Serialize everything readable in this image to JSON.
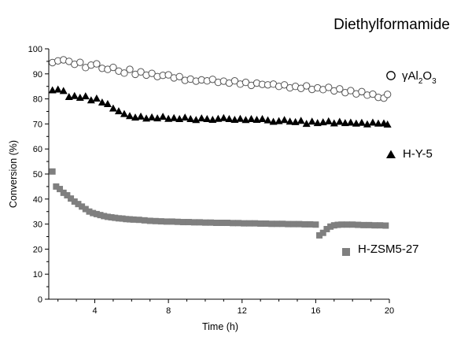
{
  "chart_data": {
    "type": "scatter",
    "title": "Diethylformamide",
    "xlabel": "Time (h)",
    "ylabel": "Conversion (%)",
    "xlim": [
      1.5,
      20
    ],
    "ylim": [
      0,
      100
    ],
    "xticks": [
      4,
      8,
      12,
      16,
      20
    ],
    "yticks": [
      0,
      10,
      20,
      30,
      40,
      50,
      60,
      70,
      80,
      90,
      100
    ],
    "grid": false,
    "legend": "right",
    "series": [
      {
        "name": "γAl2O3",
        "label_main": "γAl",
        "label_sub1": "2",
        "label_mid": "O",
        "label_sub2": "3",
        "marker": "open-circle",
        "color": "#555555",
        "x": [
          1.7,
          2.0,
          2.3,
          2.6,
          2.9,
          3.2,
          3.5,
          3.8,
          4.1,
          4.4,
          4.7,
          5.0,
          5.3,
          5.6,
          5.9,
          6.2,
          6.5,
          6.8,
          7.1,
          7.4,
          7.7,
          8.0,
          8.3,
          8.6,
          8.9,
          9.2,
          9.5,
          9.8,
          10.1,
          10.4,
          10.7,
          11.0,
          11.3,
          11.6,
          11.9,
          12.2,
          12.5,
          12.8,
          13.1,
          13.4,
          13.7,
          14.0,
          14.3,
          14.6,
          14.9,
          15.2,
          15.5,
          15.8,
          16.1,
          16.4,
          16.7,
          17.0,
          17.3,
          17.6,
          17.9,
          18.2,
          18.5,
          18.8,
          19.1,
          19.4,
          19.7,
          19.9
        ],
        "y": [
          94.5,
          95.2,
          95.6,
          95.0,
          93.8,
          94.6,
          92.5,
          93.5,
          94.0,
          92.2,
          91.8,
          92.6,
          91.1,
          90.3,
          91.8,
          89.8,
          90.8,
          89.5,
          90.2,
          88.9,
          89.4,
          89.6,
          88.4,
          88.9,
          87.4,
          87.9,
          87.1,
          87.6,
          87.2,
          87.8,
          86.6,
          87.1,
          86.3,
          87.2,
          85.9,
          86.6,
          85.4,
          86.3,
          85.8,
          85.6,
          85.9,
          85.0,
          85.6,
          84.4,
          85.0,
          84.2,
          85.2,
          83.8,
          84.4,
          83.7,
          84.6,
          83.2,
          84.0,
          82.5,
          83.3,
          82.0,
          82.9,
          81.5,
          81.9,
          80.6,
          80.3,
          81.8
        ]
      },
      {
        "name": "H-Y-5",
        "marker": "filled-triangle",
        "color": "#000000",
        "x": [
          1.7,
          2.0,
          2.3,
          2.6,
          2.9,
          3.2,
          3.5,
          3.8,
          4.1,
          4.4,
          4.7,
          5.0,
          5.3,
          5.6,
          5.9,
          6.2,
          6.5,
          6.8,
          7.1,
          7.4,
          7.7,
          8.0,
          8.3,
          8.6,
          8.9,
          9.2,
          9.5,
          9.8,
          10.1,
          10.4,
          10.7,
          11.0,
          11.3,
          11.6,
          11.9,
          12.2,
          12.5,
          12.8,
          13.1,
          13.4,
          13.7,
          14.0,
          14.3,
          14.6,
          14.9,
          15.2,
          15.5,
          15.8,
          16.1,
          16.4,
          16.7,
          17.0,
          17.3,
          17.6,
          17.9,
          18.2,
          18.5,
          18.8,
          19.1,
          19.4,
          19.7,
          19.9
        ],
        "y": [
          83.5,
          83.8,
          83.2,
          80.8,
          81.2,
          80.5,
          81.1,
          79.5,
          80.2,
          78.6,
          78.0,
          76.2,
          75.1,
          74.0,
          73.2,
          72.6,
          73.0,
          72.2,
          72.7,
          72.3,
          72.9,
          72.1,
          72.4,
          72.0,
          72.6,
          72.0,
          71.6,
          72.3,
          72.0,
          71.7,
          72.1,
          72.4,
          72.0,
          71.7,
          72.1,
          71.6,
          72.0,
          71.7,
          72.0,
          71.5,
          70.9,
          71.2,
          71.6,
          71.0,
          70.8,
          71.3,
          70.1,
          71.0,
          70.4,
          70.7,
          71.1,
          70.3,
          70.9,
          70.4,
          70.6,
          70.2,
          70.5,
          69.9,
          70.6,
          70.2,
          70.3,
          69.8
        ]
      },
      {
        "name": "H-ZSM5-27",
        "marker": "filled-square",
        "color": "#7f7f7f",
        "x": [
          1.7,
          1.9,
          2.1,
          2.3,
          2.5,
          2.7,
          2.9,
          3.1,
          3.3,
          3.5,
          3.7,
          3.9,
          4.1,
          4.3,
          4.5,
          4.7,
          4.9,
          5.1,
          5.3,
          5.5,
          5.7,
          5.9,
          6.1,
          6.4,
          6.7,
          7.0,
          7.3,
          7.6,
          7.9,
          8.2,
          8.5,
          8.8,
          9.1,
          9.4,
          9.7,
          10.0,
          10.3,
          10.6,
          10.9,
          11.2,
          11.5,
          11.8,
          12.1,
          12.4,
          12.7,
          13.0,
          13.3,
          13.6,
          13.9,
          14.2,
          14.5,
          14.8,
          15.1,
          15.4,
          15.7,
          16.0,
          16.2,
          16.4,
          16.6,
          16.8,
          17.0,
          17.2,
          17.4,
          17.7,
          18.0,
          18.3,
          18.6,
          18.9,
          19.2,
          19.5,
          19.8
        ],
        "y": [
          51.0,
          45.0,
          44.0,
          42.5,
          41.5,
          40.2,
          39.0,
          38.0,
          37.0,
          36.0,
          35.0,
          34.4,
          34.0,
          33.6,
          33.2,
          32.9,
          32.7,
          32.5,
          32.3,
          32.2,
          32.0,
          31.9,
          31.8,
          31.7,
          31.5,
          31.3,
          31.2,
          31.1,
          31.0,
          31.0,
          30.9,
          30.8,
          30.8,
          30.7,
          30.7,
          30.6,
          30.6,
          30.5,
          30.5,
          30.5,
          30.4,
          30.4,
          30.3,
          30.3,
          30.3,
          30.2,
          30.2,
          30.1,
          30.1,
          30.1,
          30.0,
          30.0,
          30.0,
          29.9,
          29.9,
          29.8,
          25.5,
          26.5,
          28.0,
          29.0,
          29.5,
          29.7,
          29.8,
          29.8,
          29.8,
          29.7,
          29.6,
          29.6,
          29.5,
          29.5,
          29.4
        ]
      }
    ]
  }
}
